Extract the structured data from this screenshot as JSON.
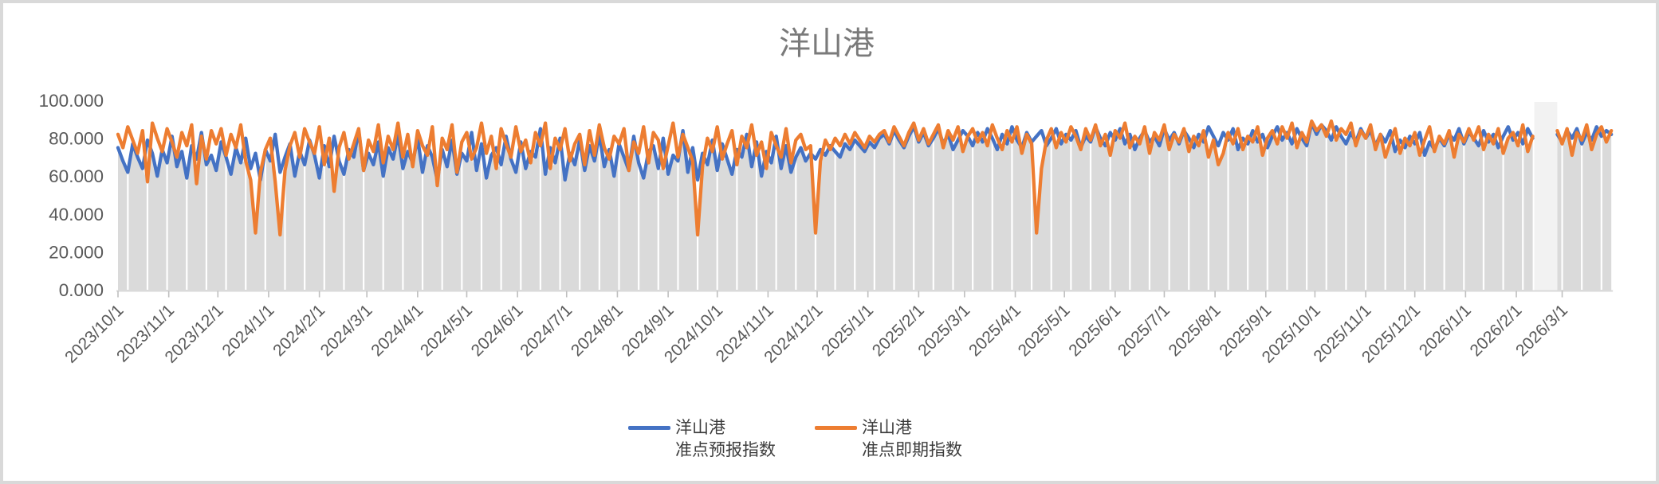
{
  "chart": {
    "colors": {
      "series_forecast": "#4472C4",
      "series_spot": "#ED7D31",
      "area_fill": "#DADADA",
      "gap_band": "#F2F2F2",
      "gridline": "#FFFFFF",
      "axis_line": "#D9D9D9",
      "tick_mark": "#BFBFBF",
      "axis_text": "#595959",
      "title_text": "#7A7A7A",
      "border": "#D9D9D9"
    }
  },
  "legend": {
    "items": [
      {
        "label_line1": "洋山港",
        "label_line2": "准点预报指数",
        "color": "#4472C4"
      },
      {
        "label_line1": "洋山港",
        "label_line2": "准点即期指数",
        "color": "#ED7D31"
      }
    ]
  },
  "chart_data": {
    "type": "line",
    "title": "洋山港",
    "xlabel": "",
    "ylabel": "",
    "ylim": [
      0,
      100
    ],
    "grid": "vertical white gridlines over gray lower-envelope area; no horizontal gridlines",
    "legend_position": "bottom",
    "x_start_date": "2023/10/1",
    "x_step_days": 3,
    "x_end_date_approx": "2026/3/31",
    "gap": {
      "start_day": 866,
      "end_day": 878,
      "note": "blank band, no data shortly before 2026/3"
    },
    "y_ticks": [
      {
        "value": 100,
        "label": "100.000"
      },
      {
        "value": 80,
        "label": "80.000"
      },
      {
        "value": 60,
        "label": "60.000"
      },
      {
        "value": 40,
        "label": "40.000"
      },
      {
        "value": 20,
        "label": "20.000"
      },
      {
        "value": 0,
        "label": "0.000"
      }
    ],
    "x_tick_labels": [
      "2023/10/1",
      "2023/11/1",
      "2023/12/1",
      "2024/1/1",
      "2024/2/1",
      "2024/3/1",
      "2024/4/1",
      "2024/5/1",
      "2024/6/1",
      "2024/7/1",
      "2024/8/1",
      "2024/9/1",
      "2024/10/1",
      "2024/11/1",
      "2024/12/1",
      "2025/1/1",
      "2025/2/1",
      "2025/3/1",
      "2025/4/1",
      "2025/5/1",
      "2025/6/1",
      "2025/7/1",
      "2025/8/1",
      "2025/9/1",
      "2025/10/1",
      "2025/11/1",
      "2025/12/1",
      "2026/1/1",
      "2026/2/1",
      "2026/3/1"
    ],
    "x_tick_days": [
      0,
      31,
      61,
      92,
      123,
      152,
      183,
      213,
      244,
      274,
      305,
      336,
      366,
      397,
      427,
      458,
      489,
      517,
      548,
      578,
      609,
      639,
      670,
      701,
      731,
      762,
      792,
      823,
      854,
      882
    ],
    "series": [
      {
        "name": "洋山港准点预报指数",
        "color": "#4472C4",
        "values": [
          75,
          68,
          62,
          77,
          70,
          64,
          79,
          72,
          60,
          74,
          67,
          81,
          65,
          73,
          59,
          76,
          69,
          83,
          66,
          71,
          63,
          78,
          70,
          61,
          75,
          67,
          80,
          64,
          72,
          58,
          74,
          68,
          82,
          62,
          70,
          77,
          60,
          73,
          66,
          79,
          71,
          59,
          76,
          65,
          81,
          68,
          61,
          74,
          70,
          84,
          63,
          72,
          66,
          78,
          60,
          75,
          69,
          82,
          64,
          73,
          67,
          80,
          62,
          76,
          70,
          58,
          74,
          65,
          79,
          61,
          72,
          68,
          83,
          63,
          77,
          59,
          71,
          75,
          66,
          81,
          69,
          62,
          78,
          64,
          73,
          70,
          85,
          61,
          75,
          67,
          80,
          58,
          72,
          66,
          79,
          63,
          76,
          68,
          82,
          65,
          74,
          60,
          77,
          70,
          63,
          81,
          67,
          59,
          73,
          76,
          64,
          80,
          61,
          71,
          68,
          84,
          62,
          75,
          58,
          72,
          66,
          79,
          63,
          77,
          69,
          61,
          74,
          70,
          82,
          65,
          78,
          60,
          73,
          67,
          81,
          64,
          76,
          62,
          70,
          75,
          68,
          72,
          69,
          74,
          71,
          76,
          73,
          70,
          77,
          74,
          79,
          76,
          73,
          78,
          75,
          80,
          82,
          77,
          84,
          79,
          75,
          81,
          86,
          78,
          83,
          76,
          80,
          85,
          77,
          82,
          74,
          79,
          84,
          81,
          76,
          83,
          78,
          85,
          80,
          74,
          82,
          77,
          86,
          79,
          75,
          83,
          78,
          81,
          84,
          76,
          80,
          85,
          77,
          82,
          79,
          84,
          75,
          81,
          78,
          86,
          80,
          76,
          83,
          79,
          85,
          77,
          82,
          74,
          80,
          84,
          78,
          81,
          76,
          85,
          79,
          83,
          77,
          84,
          80,
          75,
          82,
          78,
          86,
          81,
          76,
          83,
          79,
          85,
          74,
          80,
          77,
          84,
          78,
          82,
          75,
          81,
          86,
          79,
          83,
          77,
          85,
          80,
          76,
          88,
          82,
          87,
          84,
          79,
          86,
          81,
          77,
          83,
          78,
          85,
          80,
          84,
          76,
          82,
          78,
          84,
          73,
          79,
          75,
          81,
          77,
          83,
          71,
          78,
          74,
          80,
          76,
          82,
          79,
          85,
          77,
          83,
          80,
          76,
          84,
          78,
          82,
          75,
          81,
          86,
          79,
          83,
          77,
          85,
          80,
          null,
          null,
          null,
          null,
          82,
          78,
          84,
          80,
          85,
          77,
          83,
          79,
          86,
          81,
          84,
          82
        ]
      },
      {
        "name": "洋山港准点即期指数",
        "color": "#ED7D31",
        "values": [
          82,
          75,
          86,
          79,
          72,
          84,
          57,
          88,
          80,
          73,
          85,
          78,
          70,
          83,
          76,
          87,
          56,
          81,
          69,
          84,
          77,
          85,
          71,
          82,
          75,
          87,
          68,
          58,
          30,
          62,
          74,
          80,
          57,
          29,
          63,
          76,
          83,
          70,
          85,
          78,
          72,
          86,
          66,
          80,
          52,
          75,
          83,
          69,
          77,
          85,
          63,
          79,
          73,
          87,
          67,
          81,
          74,
          88,
          70,
          82,
          65,
          84,
          76,
          71,
          86,
          55,
          80,
          74,
          87,
          62,
          78,
          83,
          69,
          75,
          88,
          72,
          81,
          64,
          85,
          77,
          70,
          86,
          73,
          79,
          67,
          83,
          76,
          88,
          64,
          80,
          74,
          85,
          68,
          77,
          82,
          66,
          84,
          71,
          87,
          75,
          69,
          81,
          77,
          85,
          63,
          78,
          72,
          86,
          67,
          83,
          79,
          64,
          76,
          88,
          70,
          82,
          75,
          68,
          29,
          65,
          80,
          73,
          86,
          69,
          77,
          84,
          66,
          81,
          75,
          87,
          71,
          78,
          64,
          83,
          76,
          70,
          85,
          67,
          79,
          82,
          74,
          76,
          30,
          68,
          79,
          74,
          80,
          76,
          82,
          77,
          83,
          79,
          75,
          81,
          78,
          82,
          84,
          78,
          86,
          81,
          76,
          83,
          88,
          79,
          85,
          77,
          82,
          87,
          75,
          84,
          79,
          86,
          73,
          81,
          85,
          78,
          83,
          76,
          87,
          80,
          74,
          84,
          78,
          86,
          72,
          82,
          77,
          30,
          64,
          79,
          85,
          75,
          83,
          78,
          86,
          81,
          74,
          85,
          79,
          87,
          76,
          82,
          71,
          84,
          80,
          88,
          75,
          81,
          77,
          86,
          72,
          83,
          79,
          87,
          74,
          82,
          78,
          85,
          73,
          81,
          76,
          84,
          70,
          79,
          66,
          72,
          83,
          77,
          85,
          74,
          81,
          78,
          86,
          71,
          80,
          84,
          77,
          86,
          80,
          88,
          75,
          83,
          78,
          89,
          84,
          87,
          81,
          89,
          79,
          85,
          82,
          88,
          76,
          84,
          80,
          87,
          74,
          82,
          70,
          78,
          85,
          72,
          80,
          76,
          83,
          71,
          79,
          86,
          73,
          81,
          77,
          84,
          70,
          82,
          78,
          85,
          79,
          86,
          74,
          82,
          77,
          85,
          72,
          80,
          83,
          76,
          87,
          73,
          81,
          null,
          null,
          null,
          null,
          84,
          77,
          85,
          71,
          83,
          79,
          87,
          74,
          82,
          86,
          78,
          84
        ]
      }
    ]
  }
}
